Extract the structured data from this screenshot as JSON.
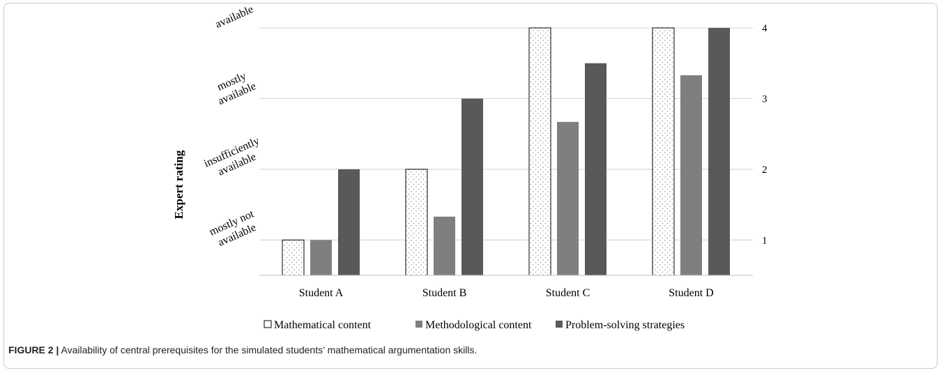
{
  "chart_data": {
    "type": "bar",
    "categories": [
      "Student A",
      "Student B",
      "Student C",
      "Student D"
    ],
    "series": [
      {
        "name": "Mathematical content",
        "values": [
          1,
          2,
          4,
          4
        ],
        "color": "#ffffff",
        "pattern": "dots"
      },
      {
        "name": "Methodological content",
        "values": [
          1,
          1.33,
          2.67,
          3.33
        ],
        "color": "#7f7f7f"
      },
      {
        "name": "Problem-solving strategies",
        "values": [
          2,
          3,
          3.5,
          4
        ],
        "color": "#595959"
      }
    ],
    "ylabel": "Expert rating",
    "ylim": [
      0.5,
      4
    ],
    "right_ticks": [
      "1",
      "2",
      "3",
      "4"
    ],
    "left_tick_labels": [
      {
        "value": 1,
        "lines": [
          "mostly not",
          "available"
        ]
      },
      {
        "value": 2,
        "lines": [
          "insufficiently",
          "available"
        ]
      },
      {
        "value": 3,
        "lines": [
          "mostly",
          "available"
        ]
      },
      {
        "value": 4,
        "lines": [
          "available"
        ]
      }
    ],
    "grid": true,
    "legend_position": "bottom"
  },
  "caption": {
    "label": "FIGURE 2 |",
    "text": "Availability of central prerequisites for the simulated students’ mathematical argumentation skills."
  }
}
